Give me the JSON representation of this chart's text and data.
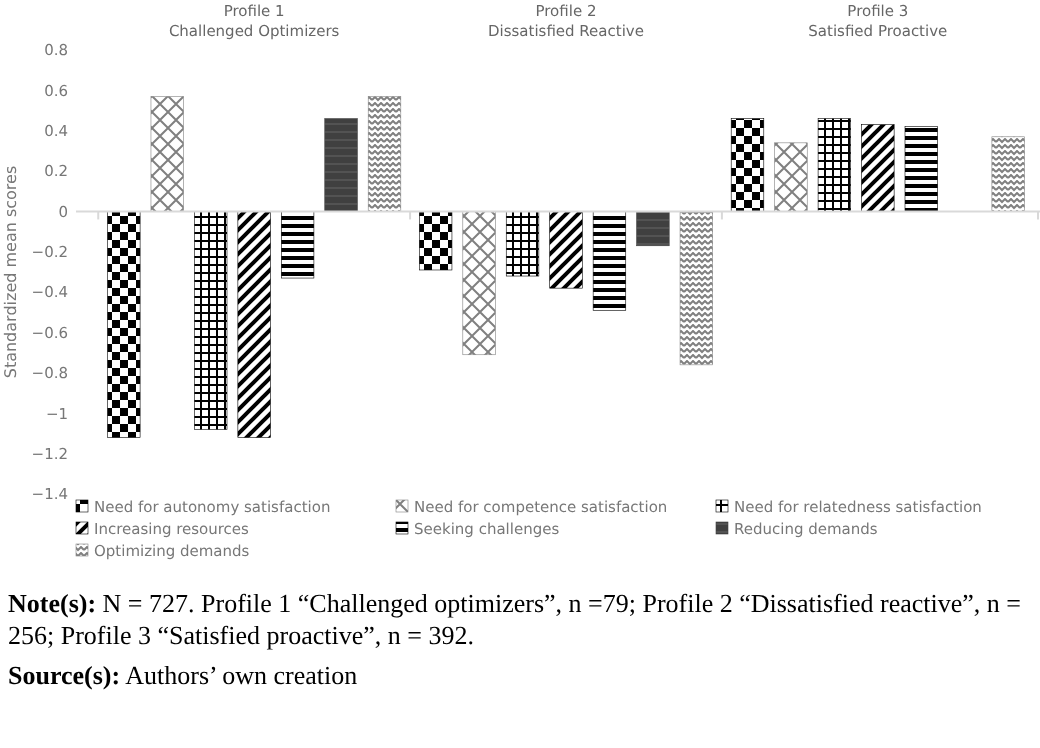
{
  "chart_data": {
    "type": "bar",
    "ylabel": "Standardized mean scores",
    "categories": [
      "Profile 1\nChallenged Optimizers",
      "Profile 2\nDissatisfied Reactive",
      "Profile 3\nSatisfied Proactive"
    ],
    "series": [
      {
        "name": "Need for autonomy satisfaction",
        "color": "#000000",
        "values": [
          -1.12,
          -0.29,
          0.46
        ]
      },
      {
        "name": "Need for competence satisfaction",
        "color": "#808080",
        "values": [
          0.57,
          -0.71,
          0.34
        ]
      },
      {
        "name": "Need for relatedness satisfaction",
        "color": "#000000",
        "values": [
          -1.08,
          -0.32,
          0.46
        ]
      },
      {
        "name": "Increasing resources",
        "color": "#000000",
        "values": [
          -1.12,
          -0.38,
          0.43
        ]
      },
      {
        "name": "Seeking challenges",
        "color": "#000000",
        "values": [
          -0.33,
          -0.49,
          0.42
        ]
      },
      {
        "name": "Reducing demands",
        "color": "#404040",
        "values": [
          0.46,
          -0.17,
          null
        ]
      },
      {
        "name": "Optimizing demands",
        "color": "#808080",
        "values": [
          0.57,
          -0.76,
          0.37
        ]
      }
    ],
    "ylim": [
      -1.4,
      0.8
    ],
    "yticks": [
      {
        "value": -1.4,
        "label": "−1.4"
      },
      {
        "value": -1.2,
        "label": "−1.2"
      },
      {
        "value": -1,
        "label": "−1"
      },
      {
        "value": -0.8,
        "label": "−0.8"
      },
      {
        "value": -0.6,
        "label": "−0.6"
      },
      {
        "value": -0.4,
        "label": "−0.4"
      },
      {
        "value": -0.2,
        "label": "−0.2"
      },
      0,
      0.2,
      0.4,
      0.6,
      0.8
    ],
    "legend": "bottom",
    "annotations": [
      "Note(s): N = 727. Profile 1 “Challenged optimizers”, n =79; Profile 2 “Dissatisfied reactive”, n = 256; Profile 3 “Satisfied proactive”, n = 392.",
      "Source(s): Authors’ own creation"
    ]
  }
}
